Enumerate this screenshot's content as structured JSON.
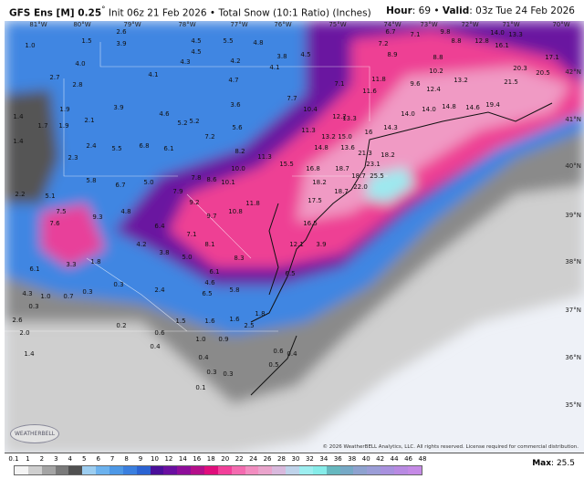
{
  "header": {
    "model": "GFS Ens [M] 0.25",
    "model_degree": "°",
    "init": "Init 06z 21 Feb 2026",
    "product": "Total Snow (10:1 Ratio) (Inches)",
    "hour_label": "Hour",
    "hour": "69",
    "valid_label": "Valid",
    "valid": "03z Tue 24 Feb 2026",
    "separator": "•"
  },
  "map": {
    "longitudes": [
      "81°W",
      "80°W",
      "79°W",
      "78°W",
      "77°W",
      "76°W",
      "75°W",
      "74°W",
      "73°W",
      "72°W",
      "71°W",
      "70°W"
    ],
    "latitudes": [
      "42°N",
      "41°N",
      "40°N",
      "39°N",
      "38°N",
      "37°N",
      "36°N",
      "35°N"
    ],
    "values": [
      "1.0",
      "1.5",
      "2.6",
      "3.9",
      "4.5",
      "4.5",
      "5.5",
      "4.8",
      "4.3",
      "4.2",
      "3.8",
      "4.1",
      "4.5",
      "4.0",
      "2.7",
      "2.8",
      "4.1",
      "4.7",
      "7.1",
      "7.7",
      "1.4",
      "1.4",
      "1.7",
      "1.9",
      "1.9",
      "2.1",
      "3.9",
      "4.6",
      "5.2",
      "5.2",
      "3.6",
      "5.6",
      "10.4",
      "12.2",
      "11.3",
      "13.2",
      "15.0",
      "14.8",
      "13.6",
      "2.4",
      "5.5",
      "6.8",
      "6.1",
      "7.2",
      "8.2",
      "11.3",
      "15.5",
      "16.8",
      "2.3",
      "2.2",
      "5.1",
      "5.8",
      "6.7",
      "5.0",
      "7.8",
      "8.6",
      "10.0",
      "10.1",
      "7.9",
      "9.2",
      "10.8",
      "9.7",
      "11.8",
      "7.5",
      "9.3",
      "7.6",
      "4.8",
      "6.4",
      "7.1",
      "4.2",
      "3.8",
      "8.1",
      "6.1",
      "3.3",
      "1.8",
      "5.0",
      "8.3",
      "6.1",
      "4.6",
      "6.5",
      "5.8",
      "2.4",
      "6.5",
      "4.3",
      "1.0",
      "0.7",
      "0.3",
      "0.3",
      "0.3",
      "2.6",
      "2.0",
      "1.4",
      "0.2",
      "0.6",
      "1.5",
      "1.6",
      "1.6",
      "1.8",
      "2.5",
      "0.4",
      "1.0",
      "0.9",
      "0.4",
      "0.3",
      "0.3",
      "0.1",
      "0.6",
      "0.5",
      "0.4",
      "13.3",
      "16",
      "18.7",
      "18.2",
      "14.3",
      "14.0",
      "14.0",
      "14.8",
      "14.6",
      "19.4",
      "20.3",
      "20.5",
      "21.5",
      "10.2",
      "12.4",
      "13.2",
      "9.6",
      "11.6",
      "11.8",
      "8.9",
      "8.8",
      "8.8",
      "12.8",
      "16.1",
      "13.3",
      "14.0",
      "17.1",
      "18.7",
      "18.2",
      "18.7",
      "22.0",
      "25.5",
      "21.3",
      "23.1",
      "17.5",
      "16.5",
      "12.1",
      "3.9",
      "6.7",
      "7.1",
      "9.8",
      "7.2"
    ],
    "copyright": "© 2026 WeatherBELL Analytics, LLC. All rights reserved. License required for commercial distribution.",
    "logo_text": "WEATHERBELL"
  },
  "legend": {
    "ticks": [
      "0.1",
      "1",
      "2",
      "3",
      "4",
      "5",
      "6",
      "7",
      "8",
      "9",
      "10",
      "12",
      "14",
      "16",
      "18",
      "20",
      "22",
      "24",
      "26",
      "28",
      "30",
      "32",
      "34",
      "36",
      "38",
      "40",
      "42",
      "44",
      "46",
      "48"
    ],
    "colors": [
      "#f4f4f4",
      "#cfcfcf",
      "#a4a4a4",
      "#7a7a7a",
      "#505050",
      "#9ccdf0",
      "#6cb2ee",
      "#4d98e6",
      "#3a7fdf",
      "#2b63d2",
      "#4a0f9a",
      "#6a0fa0",
      "#8e0e9a",
      "#b40f8a",
      "#e00e7c",
      "#f2409a",
      "#f46bb0",
      "#f28dc0",
      "#eaa4cc",
      "#d9b9dd",
      "#bfd3ea",
      "#9deef0",
      "#86ece9",
      "#66b8bf",
      "#76a9c6",
      "#8ea2cf",
      "#9b9dd7",
      "#a891de",
      "#b88ae2",
      "#c58ae6"
    ],
    "max_label": "Max",
    "max_value": "25.5"
  }
}
